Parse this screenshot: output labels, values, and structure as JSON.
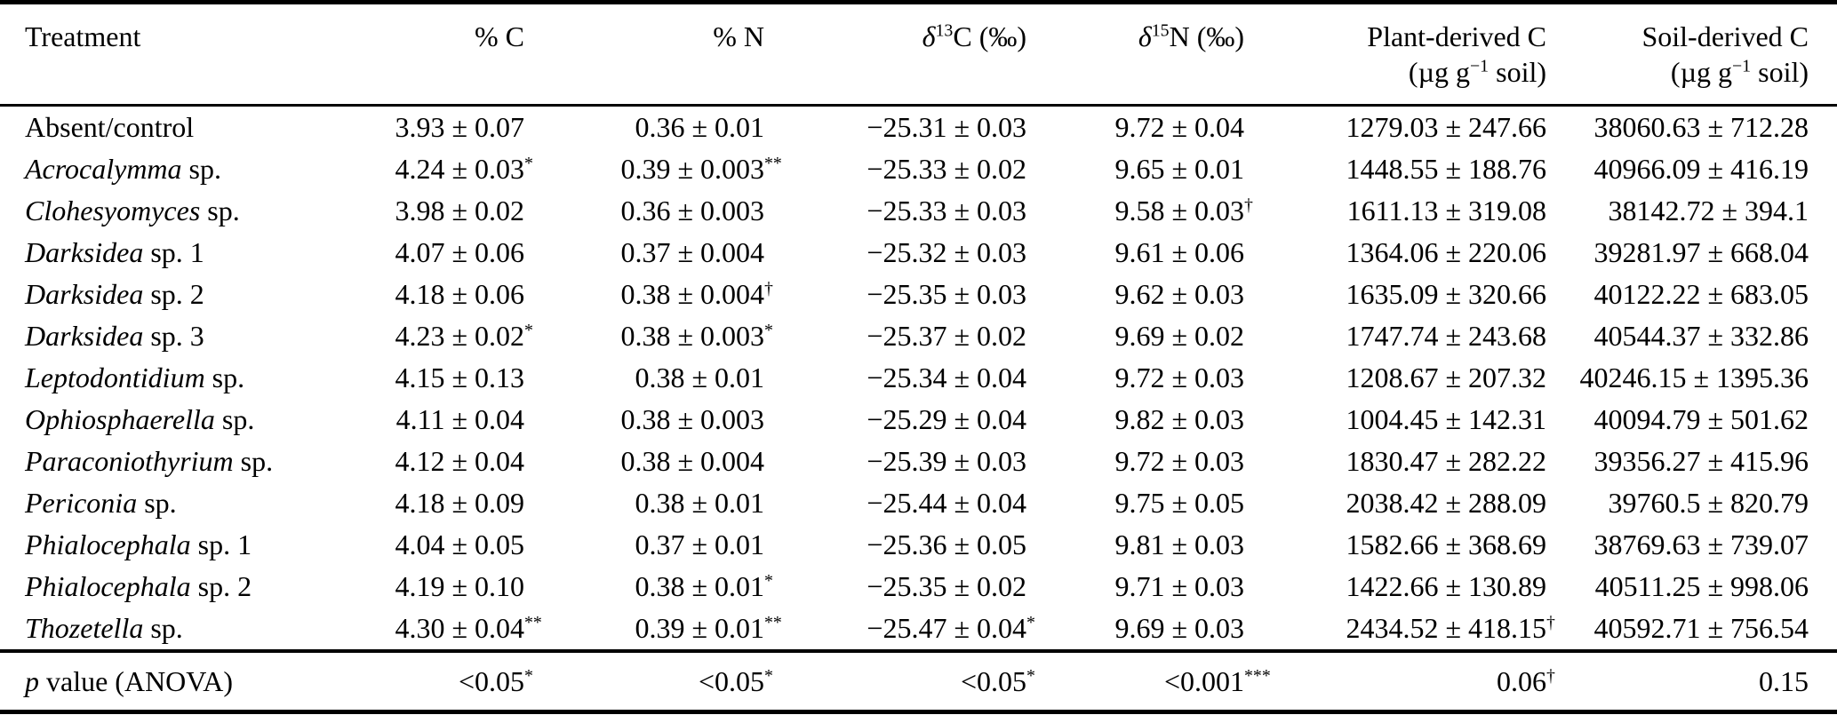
{
  "table": {
    "header": {
      "treatment": "Treatment",
      "pct_c": "% C",
      "pct_n": "% N",
      "d13c": {
        "symbol": "δ",
        "sup": "13",
        "rest": "C (‰)"
      },
      "d15n": {
        "symbol": "δ",
        "sup": "15",
        "rest": "N (‰)"
      },
      "plant": {
        "title": "Plant-derived C",
        "unit_pre": "(µg g",
        "unit_sup": "−1",
        "unit_post": " soil)"
      },
      "soil": {
        "title": "Soil-derived C",
        "unit_pre": "(µg g",
        "unit_sup": "−1",
        "unit_post": " soil)"
      }
    },
    "rows": [
      {
        "name_italic": "",
        "name_plain": "Absent/control",
        "pct_c": "3.93 ± 0.07",
        "pct_c_sup": "",
        "pct_n": "0.36 ± 0.01",
        "pct_n_sup": "",
        "d13c": "−25.31 ± 0.03",
        "d13c_sup": "",
        "d15n": "9.72 ± 0.04",
        "d15n_sup": "",
        "plant": "1279.03 ± 247.66",
        "plant_sup": "",
        "soil": "38060.63 ± 712.28",
        "soil_sup": ""
      },
      {
        "name_italic": "Acrocalymma",
        "name_plain": " sp.",
        "pct_c": "4.24 ± 0.03",
        "pct_c_sup": "*",
        "pct_n": "0.39 ± 0.003",
        "pct_n_sup": "**",
        "d13c": "−25.33 ± 0.02",
        "d13c_sup": "",
        "d15n": "9.65 ± 0.01",
        "d15n_sup": "",
        "plant": "1448.55 ± 188.76",
        "plant_sup": "",
        "soil": "40966.09 ± 416.19",
        "soil_sup": ""
      },
      {
        "name_italic": "Clohesyomyces",
        "name_plain": " sp.",
        "pct_c": "3.98 ± 0.02",
        "pct_c_sup": "",
        "pct_n": "0.36 ± 0.003",
        "pct_n_sup": "",
        "d13c": "−25.33 ± 0.03",
        "d13c_sup": "",
        "d15n": "9.58 ± 0.03",
        "d15n_sup": "†",
        "plant": "1611.13 ± 319.08",
        "plant_sup": "",
        "soil": "38142.72 ± 394.1",
        "soil_sup": ""
      },
      {
        "name_italic": "Darksidea",
        "name_plain": " sp. 1",
        "pct_c": "4.07 ± 0.06",
        "pct_c_sup": "",
        "pct_n": "0.37 ± 0.004",
        "pct_n_sup": "",
        "d13c": "−25.32 ± 0.03",
        "d13c_sup": "",
        "d15n": "9.61 ± 0.06",
        "d15n_sup": "",
        "plant": "1364.06 ± 220.06",
        "plant_sup": "",
        "soil": "39281.97 ± 668.04",
        "soil_sup": ""
      },
      {
        "name_italic": "Darksidea",
        "name_plain": " sp. 2",
        "pct_c": "4.18 ± 0.06",
        "pct_c_sup": "",
        "pct_n": "0.38 ± 0.004",
        "pct_n_sup": "†",
        "d13c": "−25.35 ± 0.03",
        "d13c_sup": "",
        "d15n": "9.62 ± 0.03",
        "d15n_sup": "",
        "plant": "1635.09 ± 320.66",
        "plant_sup": "",
        "soil": "40122.22 ± 683.05",
        "soil_sup": ""
      },
      {
        "name_italic": "Darksidea",
        "name_plain": " sp. 3",
        "pct_c": "4.23 ± 0.02",
        "pct_c_sup": "*",
        "pct_n": "0.38 ± 0.003",
        "pct_n_sup": "*",
        "d13c": "−25.37 ± 0.02",
        "d13c_sup": "",
        "d15n": "9.69 ± 0.02",
        "d15n_sup": "",
        "plant": "1747.74 ± 243.68",
        "plant_sup": "",
        "soil": "40544.37 ± 332.86",
        "soil_sup": ""
      },
      {
        "name_italic": "Leptodontidium",
        "name_plain": " sp.",
        "pct_c": "4.15 ± 0.13",
        "pct_c_sup": "",
        "pct_n": "0.38 ± 0.01",
        "pct_n_sup": "",
        "d13c": "−25.34 ± 0.04",
        "d13c_sup": "",
        "d15n": "9.72 ± 0.03",
        "d15n_sup": "",
        "plant": "1208.67 ± 207.32",
        "plant_sup": "",
        "soil": "40246.15 ± 1395.36",
        "soil_sup": ""
      },
      {
        "name_italic": "Ophiosphaerella",
        "name_plain": " sp.",
        "pct_c": "4.11 ± 0.04",
        "pct_c_sup": "",
        "pct_n": "0.38 ± 0.003",
        "pct_n_sup": "",
        "d13c": "−25.29 ± 0.04",
        "d13c_sup": "",
        "d15n": "9.82 ± 0.03",
        "d15n_sup": "",
        "plant": "1004.45 ± 142.31",
        "plant_sup": "",
        "soil": "40094.79 ± 501.62",
        "soil_sup": ""
      },
      {
        "name_italic": "Paraconiothyrium",
        "name_plain": " sp.",
        "pct_c": "4.12 ± 0.04",
        "pct_c_sup": "",
        "pct_n": "0.38 ± 0.004",
        "pct_n_sup": "",
        "d13c": "−25.39 ± 0.03",
        "d13c_sup": "",
        "d15n": "9.72 ± 0.03",
        "d15n_sup": "",
        "plant": "1830.47 ± 282.22",
        "plant_sup": "",
        "soil": "39356.27 ± 415.96",
        "soil_sup": ""
      },
      {
        "name_italic": "Periconia",
        "name_plain": " sp.",
        "pct_c": "4.18 ± 0.09",
        "pct_c_sup": "",
        "pct_n": "0.38 ± 0.01",
        "pct_n_sup": "",
        "d13c": "−25.44 ± 0.04",
        "d13c_sup": "",
        "d15n": "9.75 ± 0.05",
        "d15n_sup": "",
        "plant": "2038.42 ± 288.09",
        "plant_sup": "",
        "soil": "39760.5 ± 820.79",
        "soil_sup": ""
      },
      {
        "name_italic": "Phialocephala",
        "name_plain": " sp. 1",
        "pct_c": "4.04 ± 0.05",
        "pct_c_sup": "",
        "pct_n": "0.37 ± 0.01",
        "pct_n_sup": "",
        "d13c": "−25.36 ± 0.05",
        "d13c_sup": "",
        "d15n": "9.81 ± 0.03",
        "d15n_sup": "",
        "plant": "1582.66 ± 368.69",
        "plant_sup": "",
        "soil": "38769.63 ± 739.07",
        "soil_sup": ""
      },
      {
        "name_italic": "Phialocephala",
        "name_plain": " sp. 2",
        "pct_c": "4.19 ± 0.10",
        "pct_c_sup": "",
        "pct_n": "0.38 ± 0.01",
        "pct_n_sup": "*",
        "d13c": "−25.35 ± 0.02",
        "d13c_sup": "",
        "d15n": "9.71 ± 0.03",
        "d15n_sup": "",
        "plant": "1422.66 ± 130.89",
        "plant_sup": "",
        "soil": "40511.25 ± 998.06",
        "soil_sup": ""
      },
      {
        "name_italic": "Thozetella",
        "name_plain": " sp.",
        "pct_c": "4.30 ± 0.04",
        "pct_c_sup": "**",
        "pct_n": "0.39 ± 0.01",
        "pct_n_sup": "**",
        "d13c": "−25.47 ± 0.04",
        "d13c_sup": "*",
        "d15n": "9.69 ± 0.03",
        "d15n_sup": "",
        "plant": "2434.52 ± 418.15",
        "plant_sup": "†",
        "soil": "40592.71 ± 756.54",
        "soil_sup": ""
      }
    ],
    "footer": {
      "label_italic": "p",
      "label_plain": " value (ANOVA)",
      "pct_c": "<0.05",
      "pct_c_sup": "*",
      "pct_n": "<0.05",
      "pct_n_sup": "*",
      "d13c": "<0.05",
      "d13c_sup": "*",
      "d15n": "<0.001",
      "d15n_sup": "***",
      "plant": "0.06",
      "plant_sup": "†",
      "soil": "0.15",
      "soil_sup": ""
    }
  }
}
